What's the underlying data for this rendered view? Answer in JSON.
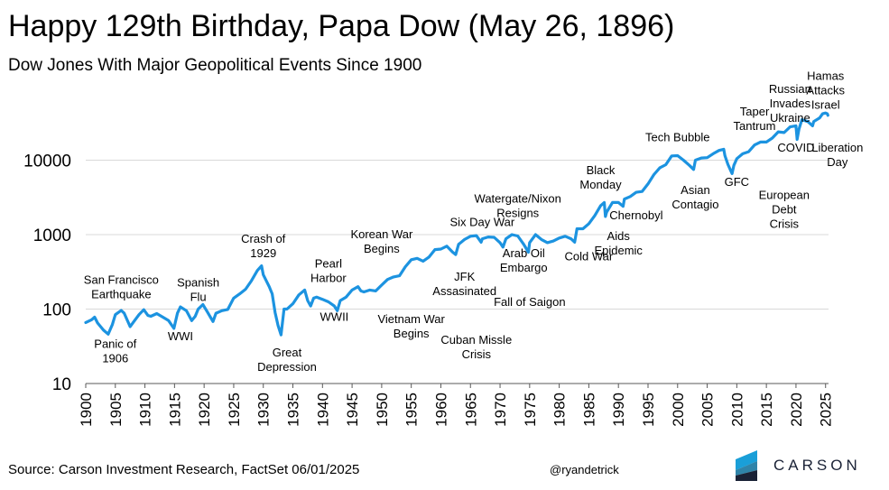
{
  "title": "Happy 129th Birthday, Papa Dow (May 26, 1896)",
  "subtitle": "Dow Jones With Major Geopolitical Events Since 1900",
  "source": "Source: Carson Investment Research, FactSet 06/01/2025",
  "handle": "@ryandetrick",
  "logo": {
    "text": "CARSON",
    "colors": [
      "#1a9fd8",
      "#0a6e9a",
      "#1a2236"
    ]
  },
  "colors": {
    "line": "#1c93e0",
    "grid": "#d9d9d9",
    "axis": "#595959"
  },
  "chart_data": {
    "type": "line",
    "title": "Happy 129th Birthday, Papa Dow (May 26, 1896)",
    "subtitle": "Dow Jones With Major Geopolitical Events Since 1900",
    "xlabel": "",
    "ylabel": "",
    "yscale": "log",
    "xlim": [
      1900,
      2025.5
    ],
    "ylim": [
      10,
      100000
    ],
    "grid": true,
    "y_ticks": [
      10,
      100,
      1000,
      10000
    ],
    "y_tick_labels": [
      "10",
      "100",
      "1000",
      "10000"
    ],
    "x_ticks": [
      1900,
      1905,
      1910,
      1915,
      1920,
      1925,
      1930,
      1935,
      1940,
      1945,
      1950,
      1955,
      1960,
      1965,
      1970,
      1975,
      1980,
      1985,
      1990,
      1995,
      2000,
      2005,
      2010,
      2015,
      2020,
      2025
    ],
    "x_tick_labels": [
      "1900",
      "1905",
      "1910",
      "1915",
      "1920",
      "1925",
      "1930",
      "1935",
      "1940",
      "1945",
      "1950",
      "1955",
      "1960",
      "1965",
      "1970",
      "1975",
      "1980",
      "1985",
      "1990",
      "1995",
      "2000",
      "2005",
      "2010",
      "2015",
      "2020",
      "2025"
    ],
    "series": [
      {
        "name": "Dow Jones",
        "x": [
          1900,
          1901,
          1901.5,
          1902,
          1903,
          1903.8,
          1904.5,
          1905,
          1906,
          1906.5,
          1907.5,
          1908,
          1909,
          1909.8,
          1910.5,
          1911,
          1912,
          1913,
          1914,
          1914.9,
          1915.5,
          1916,
          1917,
          1917.9,
          1918.5,
          1919,
          1919.8,
          1920.5,
          1921.5,
          1922,
          1923,
          1924,
          1925,
          1926,
          1927,
          1928,
          1929,
          1929.7,
          1930,
          1930.5,
          1931,
          1931.5,
          1932,
          1932.5,
          1933,
          1933.5,
          1934,
          1935,
          1936,
          1937,
          1937.5,
          1938,
          1938.5,
          1939,
          1940,
          1941,
          1942,
          1942.5,
          1943,
          1944,
          1945,
          1946,
          1946.5,
          1947,
          1948,
          1949,
          1950,
          1951,
          1952,
          1953,
          1954,
          1955,
          1956,
          1957,
          1958,
          1959,
          1960,
          1961,
          1962,
          1962.5,
          1963,
          1964,
          1965,
          1966,
          1966.8,
          1967,
          1968,
          1969,
          1970,
          1970.5,
          1971,
          1972,
          1973,
          1974,
          1974.8,
          1975,
          1976,
          1977,
          1978,
          1979,
          1980,
          1981,
          1982,
          1982.6,
          1983,
          1984,
          1985,
          1986,
          1987,
          1987.6,
          1987.8,
          1988,
          1989,
          1990,
          1990.8,
          1991,
          1992,
          1993,
          1994,
          1995,
          1996,
          1997,
          1998,
          1999,
          2000,
          2001,
          2002,
          2002.7,
          2003,
          2004,
          2005,
          2006,
          2007,
          2007.8,
          2008,
          2008.5,
          2009.2,
          2009.5,
          2010,
          2011,
          2012,
          2013,
          2014,
          2015,
          2016,
          2017,
          2018,
          2019,
          2020,
          2020.2,
          2020.5,
          2021,
          2022,
          2022.8,
          2023,
          2024,
          2024.5,
          2025,
          2025.3,
          2025.4
        ],
        "y": [
          66,
          72,
          78,
          65,
          52,
          46,
          62,
          84,
          96,
          88,
          58,
          66,
          84,
          98,
          82,
          80,
          87,
          78,
          70,
          55,
          88,
          107,
          95,
          70,
          80,
          100,
          115,
          93,
          68,
          88,
          95,
          99,
          140,
          160,
          185,
          240,
          330,
          381,
          290,
          240,
          200,
          160,
          90,
          60,
          45,
          100,
          100,
          118,
          155,
          180,
          130,
          110,
          140,
          145,
          135,
          125,
          110,
          95,
          130,
          145,
          180,
          200,
          175,
          170,
          180,
          175,
          210,
          250,
          270,
          280,
          370,
          460,
          480,
          440,
          500,
          630,
          640,
          700,
          580,
          540,
          740,
          860,
          950,
          970,
          790,
          880,
          930,
          920,
          780,
          680,
          880,
          1000,
          960,
          740,
          580,
          780,
          1000,
          860,
          780,
          820,
          900,
          950,
          880,
          790,
          1200,
          1200,
          1400,
          1800,
          2450,
          2700,
          1750,
          2000,
          2700,
          2700,
          2400,
          3000,
          3250,
          3700,
          3800,
          4800,
          6400,
          7900,
          8700,
          11400,
          11500,
          10000,
          8500,
          7500,
          10000,
          10700,
          10800,
          12200,
          13500,
          14000,
          11500,
          8800,
          6600,
          8500,
          10500,
          12200,
          13000,
          16000,
          17500,
          17500,
          19800,
          24000,
          23500,
          28000,
          29000,
          19000,
          26000,
          35000,
          33000,
          29000,
          33000,
          37000,
          42000,
          43000,
          42000,
          40000
        ]
      }
    ],
    "annotations": [
      {
        "text": "San Francisco Earthquake",
        "lines": [
          "San Francisco",
          "Earthquake"
        ],
        "x": 1906,
        "y": 220
      },
      {
        "text": "Panic of 1906",
        "lines": [
          "Panic of",
          "1906"
        ],
        "x": 1905,
        "y": 30
      },
      {
        "text": "Spanish Flu",
        "lines": [
          "Spanish",
          "Flu"
        ],
        "x": 1919,
        "y": 200
      },
      {
        "text": "WWI",
        "lines": [
          "WWI"
        ],
        "x": 1916,
        "y": 38
      },
      {
        "text": "Crash of 1929",
        "lines": [
          "Crash of",
          "1929"
        ],
        "x": 1930,
        "y": 780
      },
      {
        "text": "Great Depression",
        "lines": [
          "Great",
          "Depression"
        ],
        "x": 1934,
        "y": 23
      },
      {
        "text": "Pearl Harbor",
        "lines": [
          "Pearl",
          "Harbor"
        ],
        "x": 1941,
        "y": 360
      },
      {
        "text": "WWII",
        "lines": [
          "WWII"
        ],
        "x": 1942,
        "y": 70
      },
      {
        "text": "Korean War Begins",
        "lines": [
          "Korean War",
          "Begins"
        ],
        "x": 1950,
        "y": 900
      },
      {
        "text": "Vietnam War Begins",
        "lines": [
          "Vietnam War",
          "Begins"
        ],
        "x": 1955,
        "y": 65
      },
      {
        "text": "Six Day War",
        "lines": [
          "Six Day War"
        ],
        "x": 1967,
        "y": 1300
      },
      {
        "text": "JFK Assasinated",
        "lines": [
          "JFK",
          "Assasinated"
        ],
        "x": 1964,
        "y": 240
      },
      {
        "text": "Cuban Missle Crisis",
        "lines": [
          "Cuban Missle",
          "Crisis"
        ],
        "x": 1966,
        "y": 34
      },
      {
        "text": "Watergate/Nixon Resigns",
        "lines": [
          "Watergate/Nixon",
          "Resigns"
        ],
        "x": 1973,
        "y": 2700
      },
      {
        "text": "Arab Oil Embargo",
        "lines": [
          "Arab Oil",
          "Embargo"
        ],
        "x": 1974,
        "y": 500
      },
      {
        "text": "Fall of Saigon",
        "lines": [
          "Fall of Saigon"
        ],
        "x": 1975,
        "y": 110
      },
      {
        "text": "Cold War",
        "lines": [
          "Cold War"
        ],
        "x": 1985,
        "y": 450
      },
      {
        "text": "Black Monday",
        "lines": [
          "Black",
          "Monday"
        ],
        "x": 1987,
        "y": 6500
      },
      {
        "text": "Aids Epidemic",
        "lines": [
          "Aids",
          "Epidemic"
        ],
        "x": 1990,
        "y": 850
      },
      {
        "text": "Chernobyl",
        "lines": [
          "Chernobyl"
        ],
        "x": 1993,
        "y": 1600
      },
      {
        "text": "Tech Bubble",
        "lines": [
          "Tech Bubble"
        ],
        "x": 2000,
        "y": 18000
      },
      {
        "text": "Asian Contagio",
        "lines": [
          "Asian",
          "Contagio"
        ],
        "x": 2003,
        "y": 3500
      },
      {
        "text": "Taper Tantrum",
        "lines": [
          "Taper",
          "Tantrum"
        ],
        "x": 2013,
        "y": 40000
      },
      {
        "text": "GFC",
        "lines": [
          "GFC"
        ],
        "x": 2010,
        "y": 4500
      },
      {
        "text": "Russian Invades Ukraine",
        "lines": [
          "Russian",
          "Invades",
          "Ukraine"
        ],
        "x": 2019,
        "y": 80000
      },
      {
        "text": "European Debt Crisis",
        "lines": [
          "European",
          "Debt",
          "Crisis"
        ],
        "x": 2018,
        "y": 3000
      },
      {
        "text": "COVID",
        "lines": [
          "COVID"
        ],
        "x": 2020,
        "y": 13000
      },
      {
        "text": "Hamas Attacks Israel",
        "lines": [
          "Hamas",
          "Attacks",
          "Israel"
        ],
        "x": 2025,
        "y": 120000
      },
      {
        "text": "Liberation Day",
        "lines": [
          "Liberation",
          "Day"
        ],
        "x": 2027,
        "y": 13000
      }
    ]
  }
}
